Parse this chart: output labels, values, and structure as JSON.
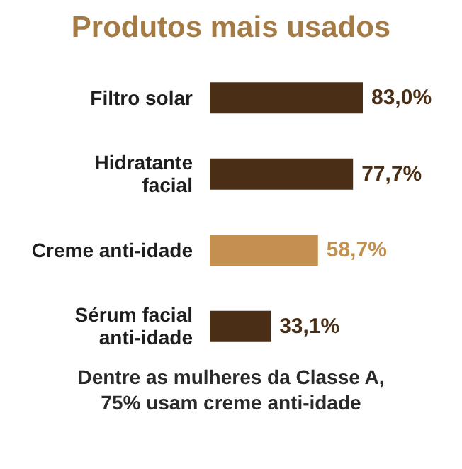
{
  "chart_data": {
    "type": "bar",
    "orientation": "horizontal",
    "title": "Produtos mais usados",
    "categories": [
      "Filtro solar",
      "Hidratante facial",
      "Creme anti-idade",
      "Sérum facial anti-idade"
    ],
    "values": [
      83.0,
      77.7,
      58.7,
      33.1
    ],
    "colors": [
      "#4a2f16",
      "#4a2f16",
      "#c4904f",
      "#4a2f16"
    ],
    "value_labels": [
      "83,0%",
      "77,7%",
      "58,7%",
      "33,1%"
    ],
    "annotations": [
      "Dentre as mulheres da Classe A,",
      "75% usam creme anti-idade"
    ]
  }
}
